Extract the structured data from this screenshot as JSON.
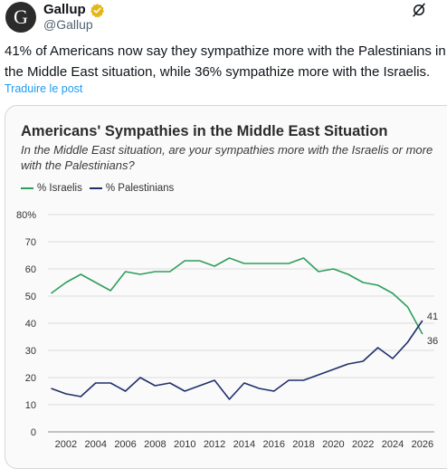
{
  "post": {
    "avatar_letter": "G",
    "display_name": "Gallup",
    "handle": "@Gallup",
    "text_line1": "41% of Americans now say they sympathize more with the Palestinians in",
    "text_line2": "the Middle East situation, while 36% sympathize more with the Israelis.",
    "translate_label": "Traduire le post"
  },
  "colors": {
    "israelis": "#2e9e5b",
    "palestinians": "#1f2f6b",
    "link": "#1d9bf0"
  },
  "icons": {
    "verified": "verified-badge-icon",
    "grok": "grok-icon"
  },
  "chart_data": {
    "type": "line",
    "title": "Americans' Sympathies in the Middle East Situation",
    "subtitle": "In the Middle East situation, are your sympathies more with the Israelis or more with the Palestinians?",
    "xlabel": "",
    "ylabel": "",
    "xlim": [
      2000.3,
      2026.8
    ],
    "ylim": [
      0,
      80
    ],
    "x_ticks": [
      "2002",
      "2004",
      "2006",
      "2008",
      "2010",
      "2012",
      "2014",
      "2016",
      "2018",
      "2020",
      "2022",
      "2024",
      "2026"
    ],
    "y_ticks": [
      "0",
      "10",
      "20",
      "30",
      "40",
      "50",
      "60",
      "70",
      "80%"
    ],
    "grid": "horizontal",
    "legend_position": "top-left",
    "series": [
      {
        "name": "% Israelis",
        "x": [
          2001,
          2002,
          2003,
          2004,
          2005,
          2006,
          2007,
          2008,
          2009,
          2010,
          2011,
          2012,
          2013,
          2014,
          2015,
          2016,
          2017,
          2018,
          2019,
          2020,
          2021,
          2022,
          2023,
          2024,
          2025,
          2026
        ],
        "values": [
          51,
          55,
          58,
          55,
          52,
          59,
          58,
          59,
          59,
          63,
          63,
          61,
          64,
          62,
          62,
          62,
          62,
          64,
          59,
          60,
          58,
          55,
          54,
          51,
          46,
          36
        ],
        "end_label": "36"
      },
      {
        "name": "% Palestinians",
        "x": [
          2001,
          2002,
          2003,
          2004,
          2005,
          2006,
          2007,
          2008,
          2009,
          2010,
          2011,
          2012,
          2013,
          2014,
          2015,
          2016,
          2017,
          2018,
          2019,
          2020,
          2021,
          2022,
          2023,
          2024,
          2025,
          2026
        ],
        "values": [
          16,
          14,
          13,
          18,
          18,
          15,
          20,
          17,
          18,
          15,
          17,
          19,
          12,
          18,
          16,
          15,
          19,
          19,
          21,
          23,
          25,
          26,
          31,
          27,
          33,
          41
        ],
        "end_label": "41"
      }
    ]
  }
}
